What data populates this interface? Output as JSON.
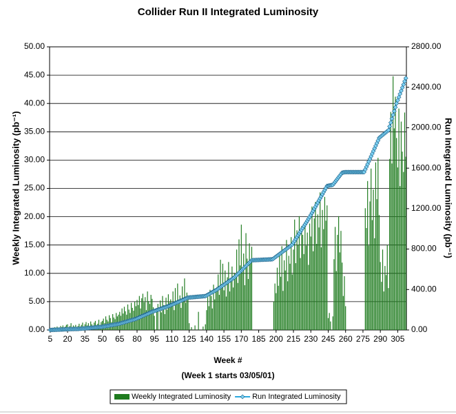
{
  "chart_data": {
    "type": "bar",
    "title": "Collider Run II Integrated Luminosity",
    "xlabel": "Week #",
    "xnote": "(Week 1 starts 03/05/01)",
    "ylabel": "Weekly Integrated Luminosity (pb⁻¹)",
    "y2label": "Run Integrated Luminosity (pb⁻¹)",
    "grid": true,
    "legend": "bottom",
    "xlim": [
      4.5,
      312.5
    ],
    "xticks": [
      5,
      20,
      35,
      50,
      65,
      80,
      95,
      110,
      125,
      140,
      155,
      170,
      185,
      200,
      215,
      230,
      245,
      260,
      275,
      290,
      305
    ],
    "ylim": [
      0,
      50
    ],
    "yticks": [
      {
        "value": 0,
        "label": "0.00"
      },
      {
        "value": 5,
        "label": "5.00"
      },
      {
        "value": 10,
        "label": "10.00"
      },
      {
        "value": 15,
        "label": "15.00"
      },
      {
        "value": 20,
        "label": "20.00"
      },
      {
        "value": 25,
        "label": "25.00"
      },
      {
        "value": 30,
        "label": "30.00"
      },
      {
        "value": 35,
        "label": "35.00"
      },
      {
        "value": 40,
        "label": "40.00"
      },
      {
        "value": 45,
        "label": "45.00"
      },
      {
        "value": 50,
        "label": "50.00"
      }
    ],
    "y2lim": [
      0,
      2800
    ],
    "y2ticks": [
      {
        "value": 0,
        "label": "0.00"
      },
      {
        "value": 400,
        "label": "400.00"
      },
      {
        "value": 800,
        "label": "800.00"
      },
      {
        "value": 1200,
        "label": "1200.00"
      },
      {
        "value": 1600,
        "label": "1600.00"
      },
      {
        "value": 2000,
        "label": "2000.00"
      },
      {
        "value": 2400,
        "label": "2400.00"
      },
      {
        "value": 2800,
        "label": "2800.00"
      }
    ],
    "x": [
      5,
      6,
      7,
      8,
      9,
      10,
      11,
      12,
      13,
      14,
      15,
      16,
      17,
      18,
      19,
      20,
      21,
      22,
      23,
      24,
      25,
      26,
      27,
      28,
      29,
      30,
      31,
      32,
      33,
      34,
      35,
      36,
      37,
      38,
      39,
      40,
      41,
      42,
      43,
      44,
      45,
      46,
      47,
      48,
      49,
      50,
      51,
      52,
      53,
      54,
      55,
      56,
      57,
      58,
      59,
      60,
      61,
      62,
      63,
      64,
      65,
      66,
      67,
      68,
      69,
      70,
      71,
      72,
      73,
      74,
      75,
      76,
      77,
      78,
      79,
      80,
      81,
      82,
      83,
      84,
      85,
      86,
      87,
      88,
      89,
      90,
      91,
      92,
      93,
      94,
      95,
      96,
      97,
      98,
      99,
      100,
      101,
      102,
      103,
      104,
      105,
      106,
      107,
      108,
      109,
      110,
      111,
      112,
      113,
      114,
      115,
      116,
      117,
      118,
      119,
      120,
      121,
      122,
      123,
      124,
      125,
      126,
      127,
      128,
      129,
      130,
      131,
      132,
      133,
      134,
      135,
      136,
      137,
      138,
      139,
      140,
      141,
      142,
      143,
      144,
      145,
      146,
      147,
      148,
      149,
      150,
      151,
      152,
      153,
      154,
      155,
      156,
      157,
      158,
      159,
      160,
      161,
      162,
      163,
      164,
      165,
      166,
      167,
      168,
      169,
      170,
      171,
      172,
      173,
      174,
      175,
      176,
      177,
      178,
      179,
      180,
      181,
      182,
      183,
      184,
      185,
      186,
      187,
      188,
      189,
      190,
      191,
      192,
      193,
      194,
      195,
      196,
      197,
      198,
      199,
      200,
      201,
      202,
      203,
      204,
      205,
      206,
      207,
      208,
      209,
      210,
      211,
      212,
      213,
      214,
      215,
      216,
      217,
      218,
      219,
      220,
      221,
      222,
      223,
      224,
      225,
      226,
      227,
      228,
      229,
      230,
      231,
      232,
      233,
      234,
      235,
      236,
      237,
      238,
      239,
      240,
      241,
      242,
      243,
      244,
      245,
      246,
      247,
      248,
      249,
      250,
      251,
      252,
      253,
      254,
      255,
      256,
      257,
      258,
      259,
      260,
      261,
      262,
      263,
      264,
      265,
      266,
      267,
      268,
      269,
      270,
      271,
      272,
      273,
      274,
      275,
      276,
      277,
      278,
      279,
      280,
      281,
      282,
      283,
      284,
      285,
      286,
      287,
      288,
      289,
      290,
      291,
      292,
      293,
      294,
      295,
      296,
      297,
      298,
      299,
      300,
      301,
      302,
      303,
      304,
      305,
      306,
      307,
      308,
      309,
      310,
      311,
      312
    ],
    "series": [
      {
        "name": "Weekly Integrated Luminosity",
        "type": "bar",
        "color": "#1e7b1e",
        "values": [
          0.2,
          0.3,
          0.1,
          0.4,
          0.5,
          0.3,
          0.6,
          0.2,
          0.4,
          0.7,
          0.5,
          0.8,
          0.3,
          0.6,
          0.9,
          1.0,
          0.4,
          0.7,
          1.2,
          0.5,
          0.8,
          0.6,
          0.9,
          0.4,
          0.7,
          1.1,
          0.6,
          0.9,
          1.3,
          0.5,
          1.0,
          1.4,
          0.8,
          1.2,
          0.7,
          1.5,
          1.0,
          0.6,
          1.3,
          1.6,
          0.9,
          1.1,
          1.8,
          0.8,
          1.4,
          1.6,
          2.0,
          1.2,
          2.4,
          1.8,
          1.5,
          2.6,
          2.1,
          1.4,
          2.8,
          2.2,
          1.9,
          3.0,
          2.4,
          2.7,
          3.2,
          2.5,
          3.8,
          2.9,
          4.1,
          3.3,
          2.7,
          4.5,
          3.6,
          3.0,
          4.8,
          3.9,
          3.4,
          5.0,
          4.2,
          5.3,
          4.4,
          6.0,
          3.8,
          5.6,
          6.4,
          4.9,
          5.8,
          3.5,
          6.8,
          5.1,
          4.6,
          6.2,
          5.5,
          4.0,
          2.5,
          0.0,
          3.8,
          4.6,
          0.0,
          5.2,
          3.1,
          6.0,
          4.4,
          2.8,
          5.7,
          3.6,
          6.3,
          4.9,
          5.4,
          4.2,
          6.8,
          3.5,
          7.4,
          5.0,
          8.2,
          4.6,
          6.1,
          3.9,
          7.7,
          5.5,
          9.1,
          4.8,
          6.6,
          5.9,
          1.2,
          0.0,
          0.5,
          0.0,
          0.0,
          0.8,
          0.0,
          0.0,
          3.2,
          0.0,
          0.0,
          0.0,
          0.6,
          0.0,
          1.0,
          3.5,
          5.8,
          4.2,
          7.1,
          6.0,
          3.8,
          8.0,
          5.4,
          6.7,
          7.6,
          9.8,
          6.2,
          12.4,
          8.1,
          11.7,
          7.0,
          10.5,
          5.9,
          9.3,
          12.0,
          6.8,
          8.7,
          11.2,
          7.5,
          10.1,
          9.5,
          14.2,
          8.3,
          16.0,
          11.4,
          18.6,
          10.2,
          13.5,
          7.9,
          17.1,
          12.6,
          9.0,
          15.3,
          11.8,
          14.7,
          0.0,
          0.0,
          0.0,
          0.0,
          0.0,
          0.0,
          0.0,
          0.0,
          0.0,
          0.0,
          0.0,
          0.0,
          0.0,
          0.0,
          0.0,
          0.0,
          0.0,
          0.0,
          5.0,
          8.2,
          6.5,
          11.0,
          7.8,
          13.6,
          9.4,
          14.8,
          6.9,
          12.3,
          10.5,
          15.9,
          8.6,
          13.1,
          11.7,
          16.4,
          9.8,
          14.2,
          19.5,
          11.8,
          17.6,
          15.0,
          20.1,
          12.7,
          18.3,
          16.8,
          13.4,
          19.0,
          14.9,
          17.2,
          11.5,
          18.8,
          16.5,
          21.8,
          13.9,
          19.7,
          22.6,
          15.2,
          20.4,
          18.1,
          24.3,
          14.6,
          21.2,
          17.8,
          23.5,
          19.3,
          22.0,
          2.1,
          3.0,
          1.5,
          0.0,
          2.4,
          12.5,
          18.2,
          10.4,
          16.8,
          20.1,
          13.7,
          17.5,
          11.9,
          6.0,
          9.5,
          4.2,
          0.0,
          0.0,
          0.0,
          0.0,
          0.0,
          0.0,
          0.0,
          0.0,
          0.0,
          0.0,
          0.0,
          0.0,
          0.0,
          0.0,
          0.0,
          0.0,
          21.5,
          18.0,
          26.3,
          14.9,
          22.7,
          28.5,
          19.4,
          24.8,
          16.2,
          29.6,
          23.1,
          30.4,
          20.3,
          12.0,
          8.5,
          14.2,
          6.8,
          11.3,
          9.7,
          15.0,
          7.4,
          30.2,
          38.5,
          29.4,
          44.8,
          35.6,
          41.2,
          33.9,
          28.7,
          39.1,
          25.4,
          36.8,
          31.5,
          27.9,
          38.4,
          30.6
        ]
      },
      {
        "name": "Run Integrated Luminosity",
        "type": "line",
        "axis": "y2",
        "color": "#2aa7de",
        "values": [
          0,
          0,
          1,
          1,
          2,
          2,
          3,
          3,
          4,
          4,
          5,
          5,
          6,
          6,
          7,
          7,
          8,
          8,
          9,
          9,
          9,
          10,
          10,
          10,
          10,
          11,
          12,
          13,
          14,
          15,
          16,
          17,
          18,
          19,
          20,
          21,
          22,
          23,
          24,
          25,
          26,
          27,
          28,
          29,
          30,
          32,
          34,
          36,
          38,
          40,
          42,
          44,
          46,
          48,
          50,
          52,
          54,
          56,
          58,
          60,
          63,
          66,
          70,
          73,
          76,
          80,
          83,
          86,
          90,
          93,
          96,
          100,
          103,
          106,
          110,
          115,
          120,
          125,
          130,
          135,
          140,
          145,
          150,
          155,
          160,
          165,
          170,
          175,
          180,
          185,
          188,
          192,
          196,
          200,
          204,
          208,
          212,
          216,
          220,
          224,
          228,
          232,
          236,
          240,
          245,
          250,
          255,
          260,
          265,
          270,
          275,
          280,
          285,
          290,
          295,
          300,
          305,
          310,
          315,
          320,
          321,
          322,
          323,
          324,
          325,
          326,
          327,
          328,
          329,
          330,
          331,
          332,
          333,
          334,
          335,
          341,
          348,
          354,
          361,
          367,
          374,
          380,
          387,
          393,
          400,
          408,
          416,
          424,
          432,
          440,
          448,
          456,
          464,
          472,
          480,
          488,
          496,
          504,
          512,
          520,
          531,
          542,
          554,
          565,
          576,
          588,
          599,
          610,
          622,
          633,
          644,
          656,
          667,
          678,
          690,
          690,
          691,
          691,
          692,
          692,
          693,
          693,
          694,
          694,
          695,
          695,
          696,
          696,
          697,
          698,
          698,
          699,
          700,
          708,
          717,
          725,
          734,
          742,
          751,
          759,
          768,
          776,
          785,
          793,
          802,
          810,
          819,
          827,
          836,
          845,
          863,
          881,
          899,
          917,
          936,
          954,
          972,
          990,
          1008,
          1026,
          1044,
          1062,
          1080,
          1099,
          1117,
          1137,
          1158,
          1178,
          1199,
          1219,
          1240,
          1260,
          1281,
          1301,
          1322,
          1342,
          1363,
          1383,
          1404,
          1424,
          1426,
          1429,
          1431,
          1433,
          1435,
          1450,
          1465,
          1480,
          1495,
          1510,
          1525,
          1540,
          1555,
          1558,
          1560,
          1561,
          1561,
          1561,
          1561,
          1561,
          1561,
          1561,
          1561,
          1561,
          1561,
          1561,
          1561,
          1561,
          1561,
          1561,
          1561,
          1561,
          1587,
          1613,
          1639,
          1665,
          1691,
          1717,
          1743,
          1769,
          1795,
          1821,
          1847,
          1873,
          1900,
          1909,
          1919,
          1928,
          1938,
          1947,
          1956,
          1966,
          1975,
          2013,
          2051,
          2089,
          2127,
          2164,
          2202,
          2240,
          2271,
          2302,
          2334,
          2365,
          2396,
          2427,
          2459,
          2490
        ]
      }
    ]
  }
}
